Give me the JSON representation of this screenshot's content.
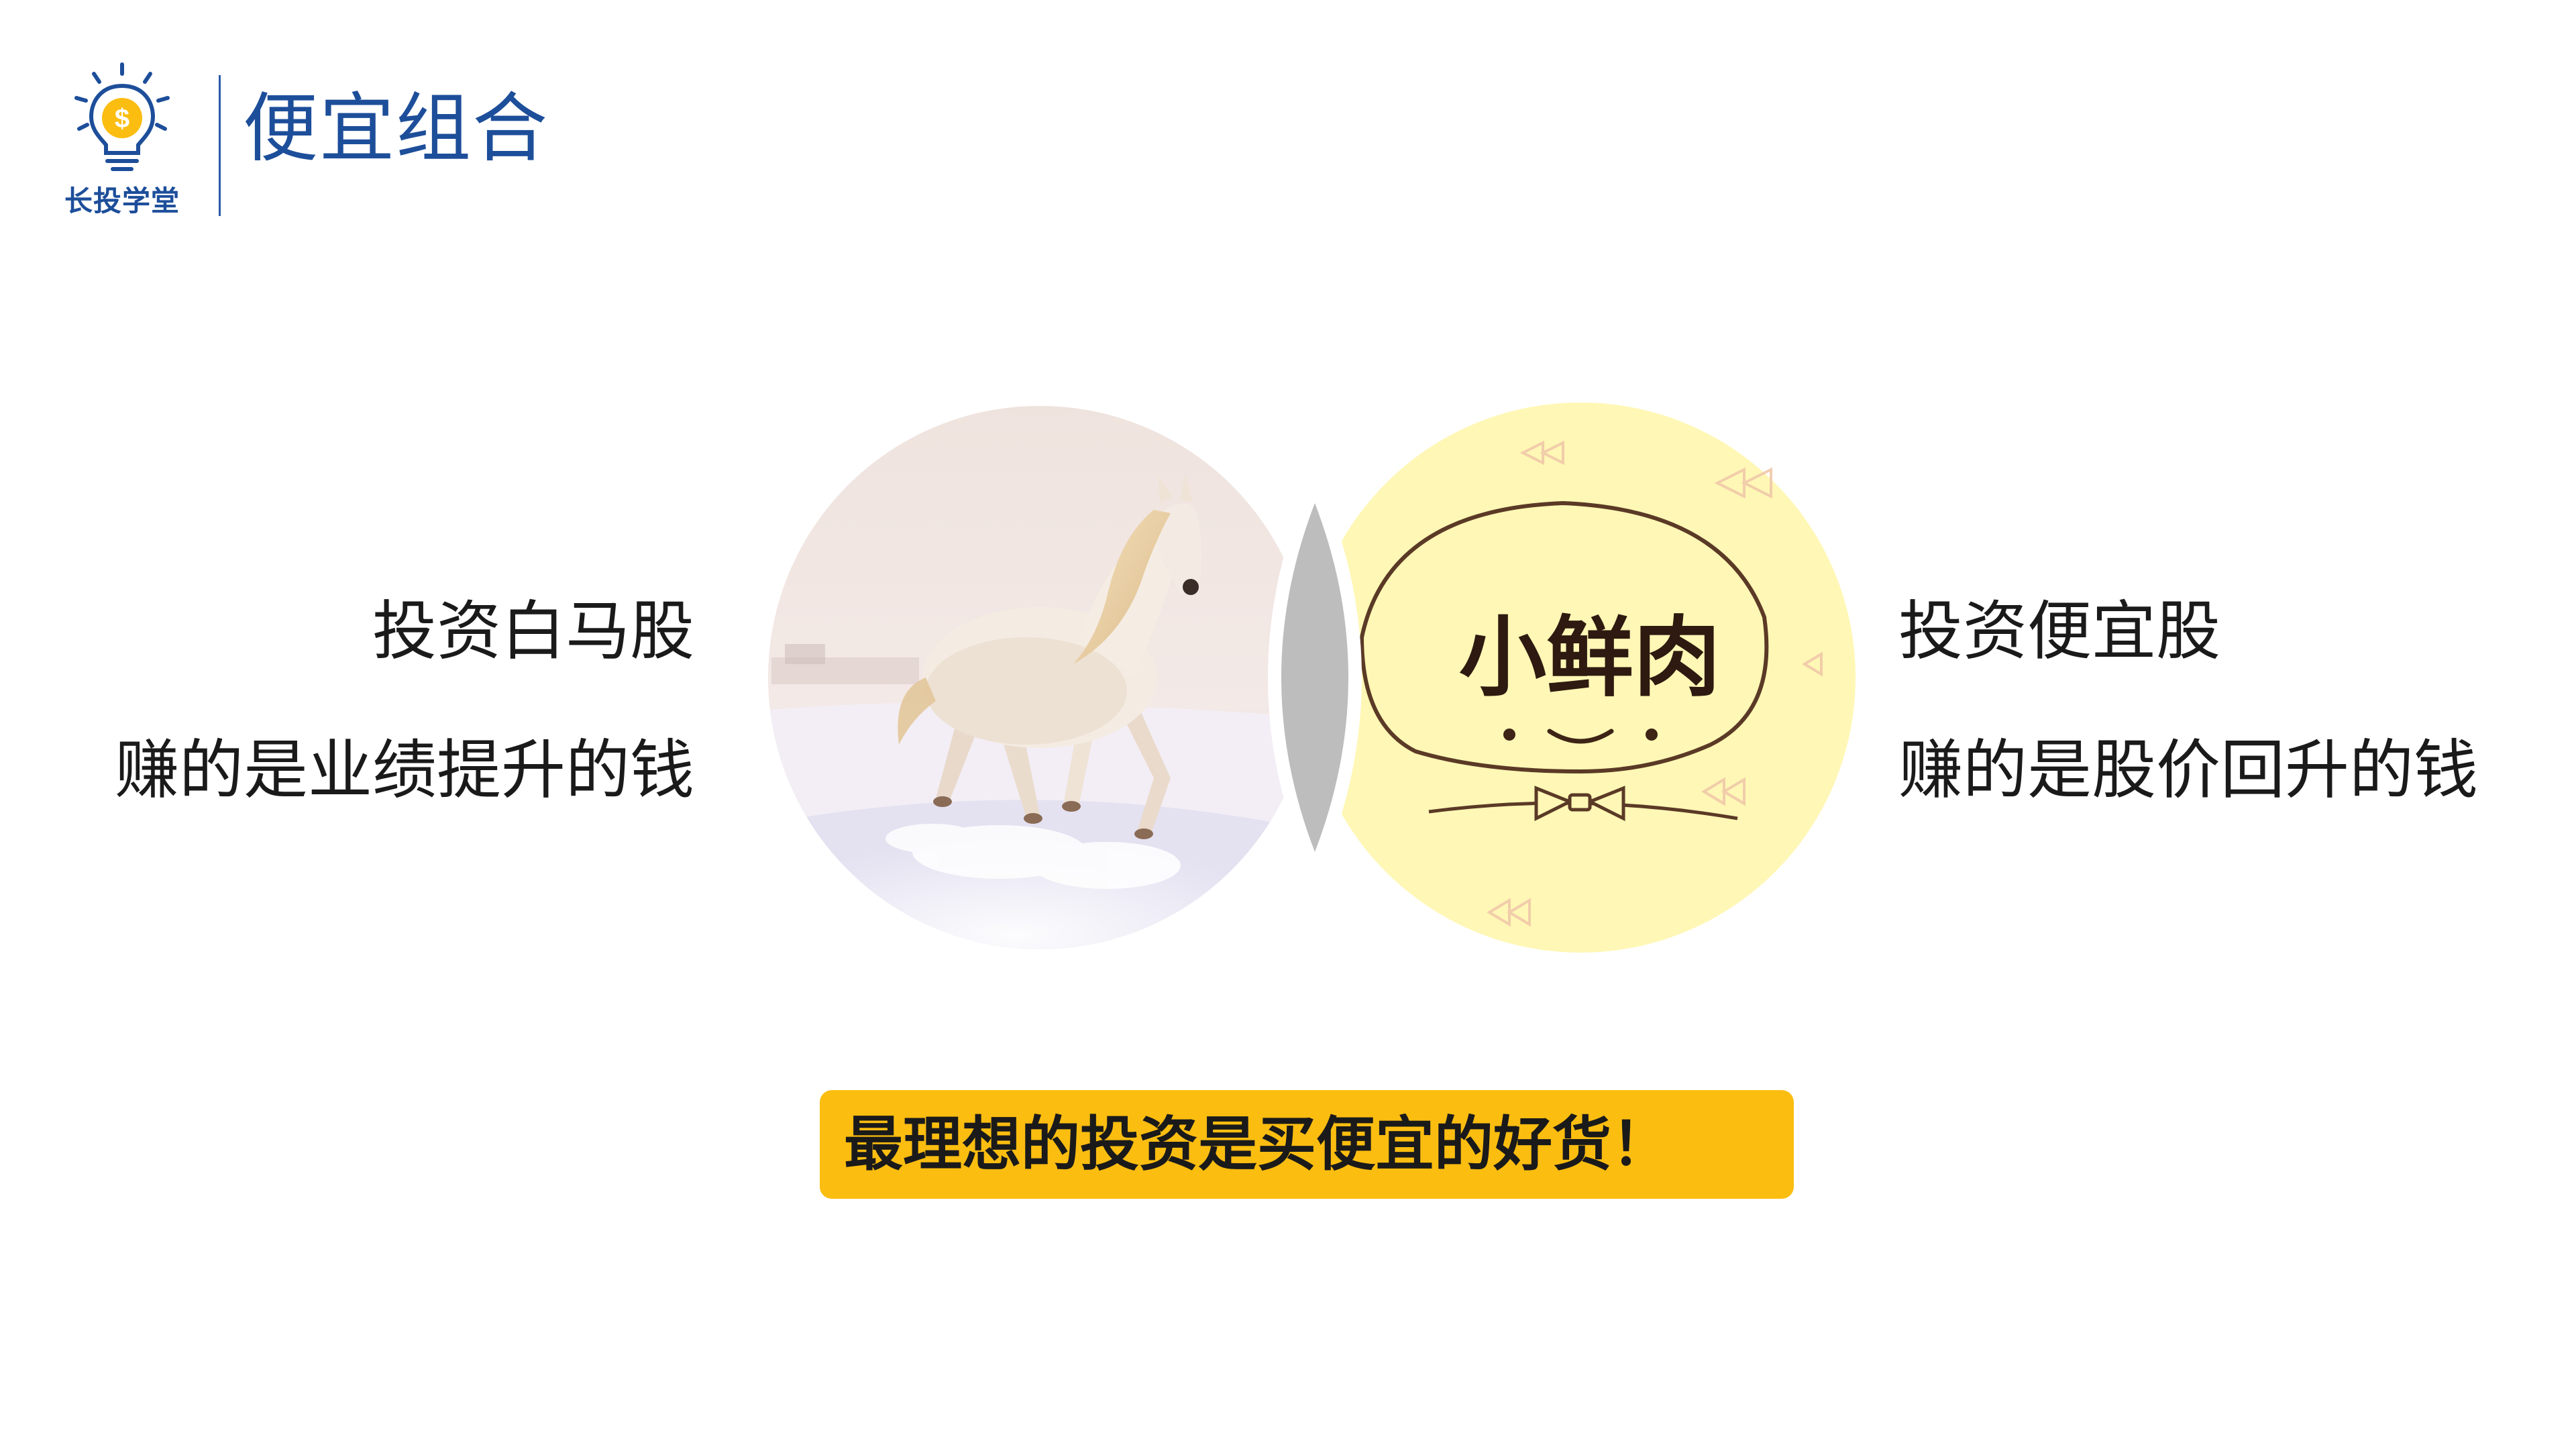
{
  "header": {
    "logo_text": "长投学堂",
    "logo_icon": "lightbulb-dollar-icon",
    "title": "便宜组合"
  },
  "left": {
    "line1": "投资白马股",
    "line2": "赚的是业绩提升的钱",
    "image": "white-horse-photo"
  },
  "right": {
    "line1": "投资便宜股",
    "line2": "赚的是股价回升的钱",
    "image": "xiao-xian-rou-illustration",
    "image_text": "小鲜肉"
  },
  "banner": {
    "text": "最理想的投资是买便宜的好货！"
  },
  "colors": {
    "brand_blue": "#1d4e9a",
    "accent_yellow": "#fbbd10",
    "intersection_gray": "#bdbdbd",
    "circle_yellow": "#fff7b5"
  }
}
